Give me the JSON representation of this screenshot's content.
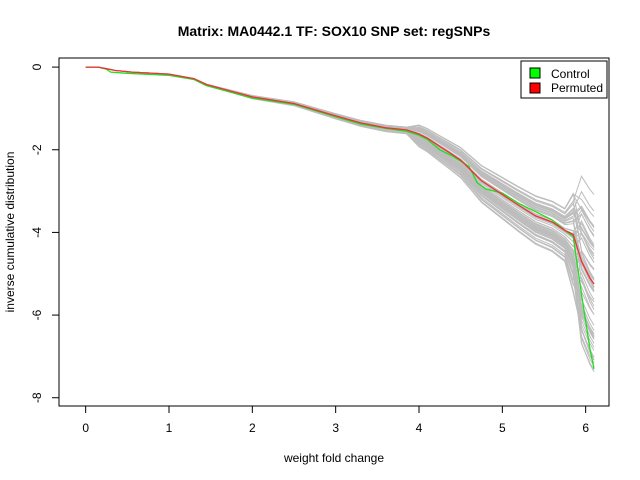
{
  "chart_data": {
    "type": "line",
    "title": "Matrix: MA0442.1 TF: SOX10 SNP set: regSNPs",
    "xlabel": "weight fold change",
    "ylabel": "inverse cumulative distribution",
    "xlim": [
      -0.32,
      6.28
    ],
    "ylim": [
      -8.2,
      0.22
    ],
    "xticks": [
      0,
      1,
      2,
      3,
      4,
      5,
      6
    ],
    "yticks": [
      0,
      -2,
      -4,
      -6,
      -8
    ],
    "grid": false,
    "legend_position": "top-right",
    "legend": [
      {
        "label": "Control",
        "color": "#00ff00"
      },
      {
        "label": "Permuted",
        "color": "#ff0000"
      }
    ],
    "series": [
      {
        "name": "Control",
        "color": "#22dd22",
        "x": [
          0,
          0.15,
          0.25,
          0.3,
          0.5,
          1.0,
          1.3,
          1.45,
          2.0,
          2.5,
          3.0,
          3.3,
          3.6,
          3.85,
          4.0,
          4.1,
          4.25,
          4.4,
          4.6,
          4.7,
          4.8,
          5.0,
          5.2,
          5.4,
          5.6,
          5.75,
          5.85,
          5.95,
          6.05,
          6.1
        ],
        "y": [
          0,
          0,
          -0.05,
          -0.12,
          -0.15,
          -0.2,
          -0.3,
          -0.45,
          -0.75,
          -0.9,
          -1.2,
          -1.38,
          -1.48,
          -1.55,
          -1.65,
          -1.75,
          -2.0,
          -2.15,
          -2.4,
          -2.8,
          -2.95,
          -3.05,
          -3.3,
          -3.5,
          -3.7,
          -3.95,
          -4.1,
          -5.5,
          -6.8,
          -7.3
        ]
      },
      {
        "name": "Permuted",
        "color": "#ee3333",
        "x": [
          0,
          0.15,
          0.25,
          0.35,
          0.55,
          1.0,
          1.3,
          1.45,
          2.0,
          2.5,
          3.0,
          3.3,
          3.6,
          3.85,
          4.0,
          4.1,
          4.25,
          4.35,
          4.5,
          4.65,
          4.75,
          4.9,
          5.05,
          5.2,
          5.4,
          5.6,
          5.75,
          5.85,
          5.95,
          6.05,
          6.1
        ],
        "y": [
          0,
          0,
          -0.04,
          -0.08,
          -0.12,
          -0.17,
          -0.28,
          -0.42,
          -0.72,
          -0.88,
          -1.18,
          -1.35,
          -1.47,
          -1.52,
          -1.62,
          -1.72,
          -1.92,
          -2.05,
          -2.25,
          -2.55,
          -2.75,
          -2.95,
          -3.15,
          -3.35,
          -3.6,
          -3.75,
          -3.95,
          -4.05,
          -4.7,
          -5.1,
          -5.25
        ]
      }
    ]
  }
}
